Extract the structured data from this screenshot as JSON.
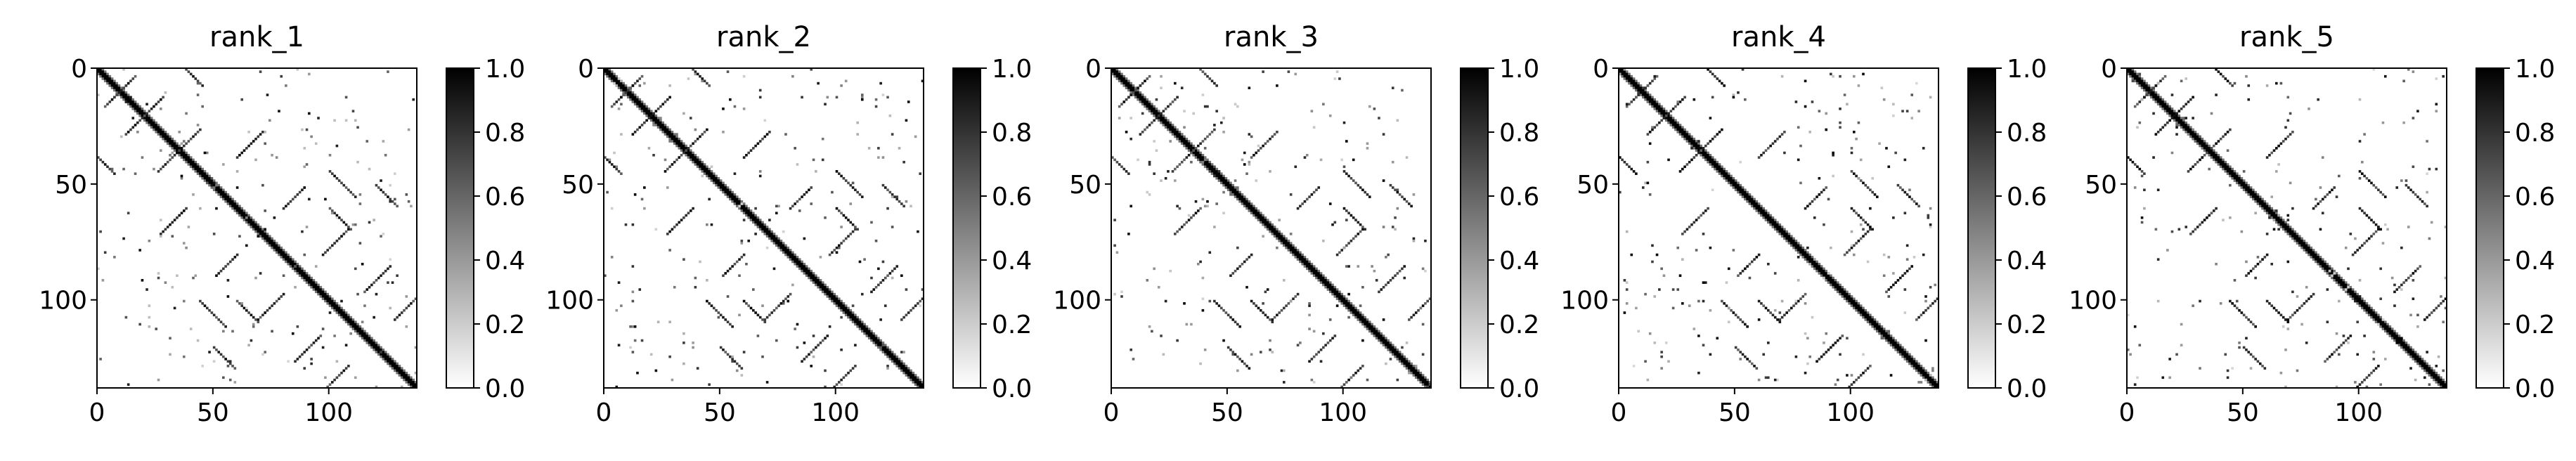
{
  "chart_data": [
    {
      "type": "heatmap",
      "title": "rank_1",
      "xlim": [
        0,
        138
      ],
      "ylim": [
        0,
        138
      ],
      "y_inverted": true,
      "x_ticks": [
        "0",
        "50",
        "100"
      ],
      "y_ticks": [
        "0",
        "50",
        "100"
      ],
      "colorbar": {
        "range": [
          0.0,
          1.0
        ],
        "ticks": [
          "0.0",
          "0.2",
          "0.4",
          "0.6",
          "0.8",
          "1.0"
        ],
        "colormap": "gray_r"
      },
      "grid": false
    },
    {
      "type": "heatmap",
      "title": "rank_2",
      "xlim": [
        0,
        138
      ],
      "ylim": [
        0,
        138
      ],
      "y_inverted": true,
      "x_ticks": [
        "0",
        "50",
        "100"
      ],
      "y_ticks": [
        "0",
        "50",
        "100"
      ],
      "colorbar": {
        "range": [
          0.0,
          1.0
        ],
        "ticks": [
          "0.0",
          "0.2",
          "0.4",
          "0.6",
          "0.8",
          "1.0"
        ],
        "colormap": "gray_r"
      },
      "grid": false
    },
    {
      "type": "heatmap",
      "title": "rank_3",
      "xlim": [
        0,
        138
      ],
      "ylim": [
        0,
        138
      ],
      "y_inverted": true,
      "x_ticks": [
        "0",
        "50",
        "100"
      ],
      "y_ticks": [
        "0",
        "50",
        "100"
      ],
      "colorbar": {
        "range": [
          0.0,
          1.0
        ],
        "ticks": [
          "0.0",
          "0.2",
          "0.4",
          "0.6",
          "0.8",
          "1.0"
        ],
        "colormap": "gray_r"
      },
      "grid": false
    },
    {
      "type": "heatmap",
      "title": "rank_4",
      "xlim": [
        0,
        138
      ],
      "ylim": [
        0,
        138
      ],
      "y_inverted": true,
      "x_ticks": [
        "0",
        "50",
        "100"
      ],
      "y_ticks": [
        "0",
        "50",
        "100"
      ],
      "colorbar": {
        "range": [
          0.0,
          1.0
        ],
        "ticks": [
          "0.0",
          "0.2",
          "0.4",
          "0.6",
          "0.8",
          "1.0"
        ],
        "colormap": "gray_r"
      },
      "grid": false
    },
    {
      "type": "heatmap",
      "title": "rank_5",
      "xlim": [
        0,
        138
      ],
      "ylim": [
        0,
        138
      ],
      "y_inverted": true,
      "x_ticks": [
        "0",
        "50",
        "100"
      ],
      "y_ticks": [
        "0",
        "50",
        "100"
      ],
      "colorbar": {
        "range": [
          0.0,
          1.0
        ],
        "ticks": [
          "0.0",
          "0.2",
          "0.4",
          "0.6",
          "0.8",
          "1.0"
        ],
        "colormap": "gray_r"
      },
      "grid": false
    }
  ]
}
